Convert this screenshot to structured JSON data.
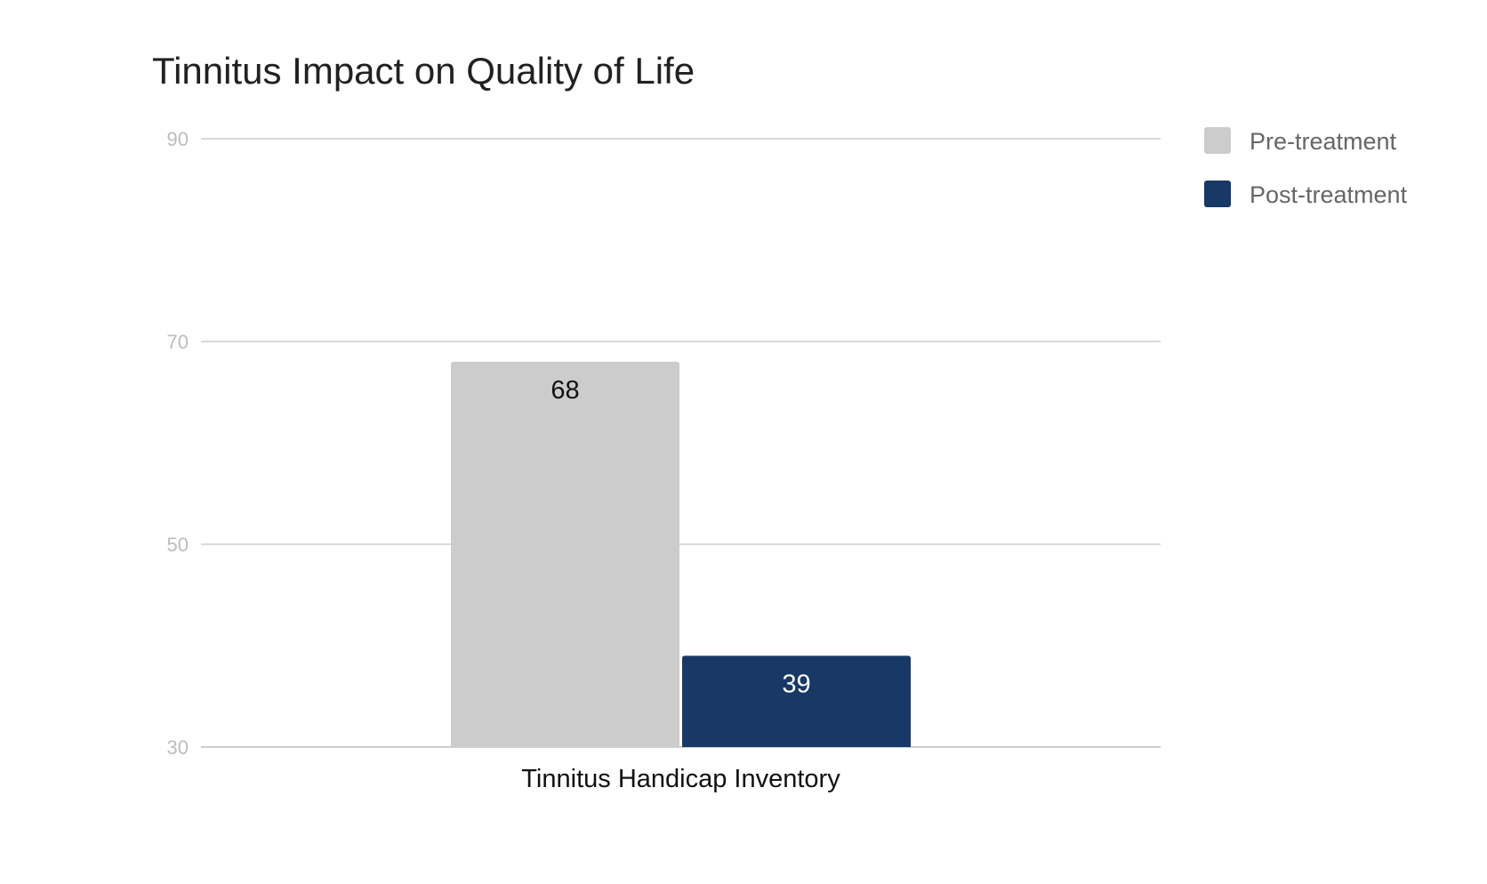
{
  "chart_data": {
    "type": "bar",
    "title": "Tinnitus Impact on Quality of Life",
    "xlabel": "",
    "ylabel": "",
    "categories": [
      "Tinnitus Handicap Inventory"
    ],
    "series": [
      {
        "name": "Pre-treatment",
        "values": [
          68
        ],
        "color": "#cccccc",
        "label_color": "#111111"
      },
      {
        "name": "Post-treatment",
        "values": [
          39
        ],
        "color": "#183866",
        "label_color": "#ffffff"
      }
    ],
    "ylim": [
      30,
      90
    ],
    "yticks": [
      "30",
      "50",
      "70",
      "90"
    ],
    "ytick_values": [
      30,
      50,
      70,
      90
    ],
    "grid": true,
    "legend_position": "right"
  }
}
